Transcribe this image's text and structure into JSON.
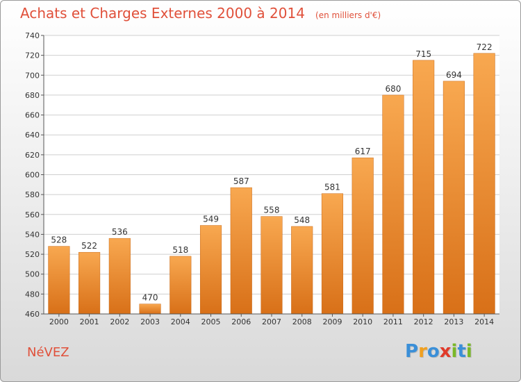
{
  "title": "Achats et Charges Externes 2000 à 2014",
  "unit": "(en milliers d'€)",
  "commune": "NéVEZ",
  "logo": {
    "text": "Proxiti",
    "letters": [
      {
        "ch": "P",
        "color": "#3a8fd8"
      },
      {
        "ch": "r",
        "color": "#f0a020"
      },
      {
        "ch": "o",
        "color": "#3a8fd8"
      },
      {
        "ch": "x",
        "color": "#e03a2a"
      },
      {
        "ch": "i",
        "color": "#7ab828"
      },
      {
        "ch": "t",
        "color": "#3a8fd8"
      },
      {
        "ch": "i",
        "color": "#7ab828"
      }
    ]
  },
  "colors": {
    "bar_top": "#f8a850",
    "bar_bottom": "#d87018",
    "text": "#e0503a",
    "grid": "#cfcfcf"
  },
  "chart_data": {
    "type": "bar",
    "title": "Achats et Charges Externes 2000 à 2014",
    "xlabel": "",
    "ylabel": "",
    "categories": [
      "2000",
      "2001",
      "2002",
      "2003",
      "2004",
      "2005",
      "2006",
      "2007",
      "2008",
      "2009",
      "2010",
      "2011",
      "2012",
      "2013",
      "2014"
    ],
    "values": [
      528,
      522,
      536,
      470,
      518,
      549,
      587,
      558,
      548,
      581,
      617,
      680,
      715,
      694,
      722
    ],
    "ylim": [
      460,
      740
    ],
    "yticks": [
      460,
      480,
      500,
      520,
      540,
      560,
      580,
      600,
      620,
      640,
      660,
      680,
      700,
      720,
      740
    ],
    "grid": true,
    "legend": "none"
  }
}
